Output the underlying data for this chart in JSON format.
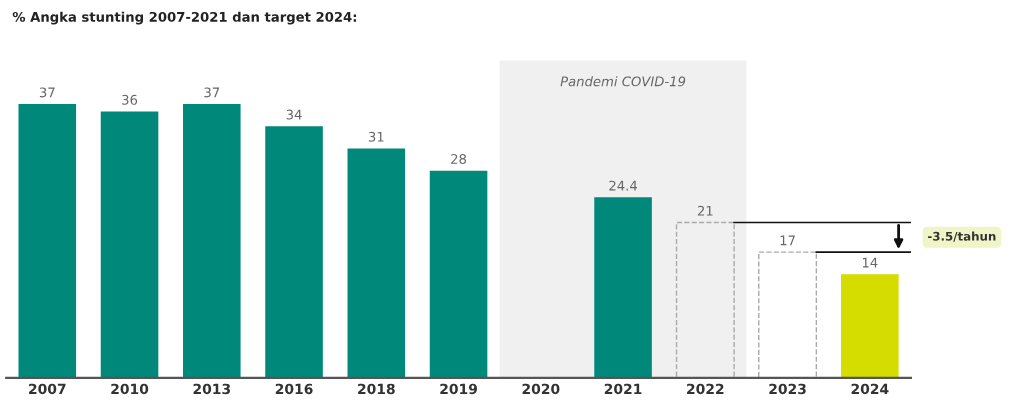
{
  "chart_data": {
    "type": "bar",
    "title": "% Angka stunting 2007-2021 dan target 2024:",
    "categories": [
      "2007",
      "2010",
      "2013",
      "2016",
      "2018",
      "2019",
      "2020",
      "2021",
      "2022",
      "2023",
      "2024"
    ],
    "series": [
      {
        "color": "#00897b",
        "values": [
          37,
          36,
          37,
          34,
          31,
          28,
          null,
          24.4,
          null,
          null,
          null
        ]
      },
      {
        "color": "#aaaaaa",
        "line_style": "dashed",
        "values": [
          null,
          null,
          null,
          null,
          null,
          null,
          null,
          null,
          21,
          17,
          null
        ]
      },
      {
        "color": "#d4dc00",
        "values": [
          null,
          null,
          null,
          null,
          null,
          null,
          null,
          null,
          null,
          null,
          14
        ]
      }
    ],
    "data_labels": true,
    "ref_lines": [
      {
        "axis": "y",
        "value": 21,
        "color": "#111111"
      },
      {
        "axis": "y",
        "value": 17,
        "color": "#111111"
      }
    ],
    "bands": [
      {
        "axis": "x",
        "from": "2020",
        "to": "2022",
        "label": "Pandemi COVID-19",
        "color": "#f0f0f0"
      }
    ],
    "annotations": [
      "-3.5/tahun"
    ]
  }
}
